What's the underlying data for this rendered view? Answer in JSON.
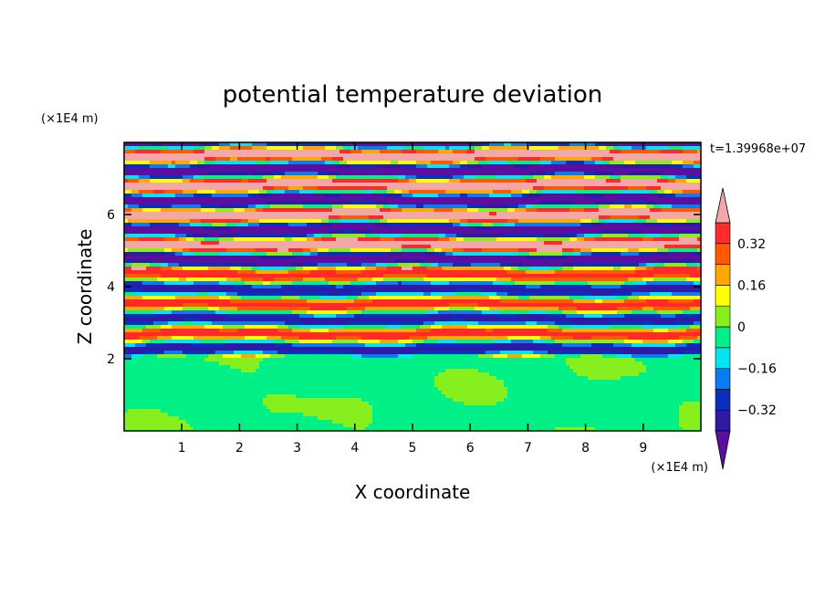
{
  "chart_data": {
    "type": "heatmap",
    "title": "potential temperature deviation",
    "xlabel": "X coordinate",
    "ylabel": "Z coordinate",
    "x_unit": "(×1E4 m)",
    "y_unit": "(×1E4 m)",
    "time_label": "t=1.39968e+07",
    "xlim": [
      0,
      10
    ],
    "ylim": [
      0,
      8
    ],
    "x_ticks": [
      1,
      2,
      3,
      4,
      5,
      6,
      7,
      8,
      9
    ],
    "y_ticks": [
      2,
      4,
      6
    ],
    "grid": false,
    "colorbar": {
      "levels": [
        -0.4,
        -0.32,
        -0.24,
        -0.16,
        -0.08,
        0,
        0.08,
        0.16,
        0.24,
        0.32,
        0.4
      ],
      "labels": [
        "0.32",
        "0.16",
        "0",
        "−0.16",
        "−0.32"
      ],
      "label_values": [
        0.32,
        0.16,
        0,
        -0.16,
        -0.32
      ],
      "colors": [
        "#5a0f9e",
        "#2e1aa5",
        "#0a2fbd",
        "#0a7cf0",
        "#00e5f0",
        "#00f088",
        "#88ef1e",
        "#ffff00",
        "#ffa800",
        "#ff5a00",
        "#ff2a2a",
        "#f2a8a8"
      ],
      "extend": "both"
    },
    "regions": {
      "z_top": 8,
      "banded_layer_bottom_z": 2.0,
      "lower_layer_dominant_value": -0.04,
      "lower_layer_patch_value": 0.04
    }
  }
}
